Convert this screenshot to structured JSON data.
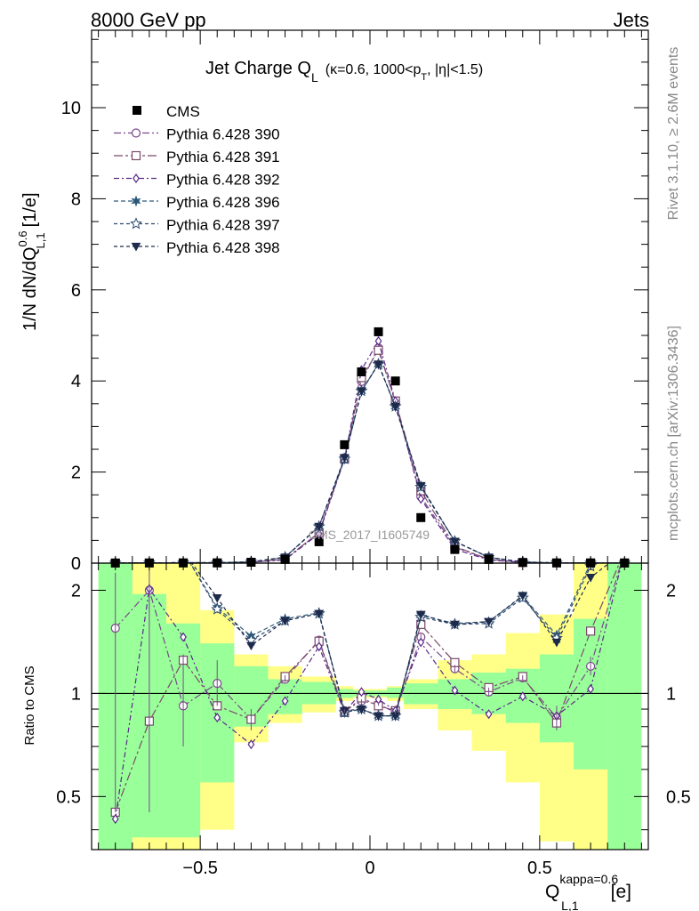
{
  "header": {
    "left": "8000 GeV pp",
    "right": "Jets"
  },
  "side_labels": {
    "rivet": "Rivet 3.1.10, ≥ 2.6M events",
    "mcplots": "mcplots.cern.ch [arXiv:1306.3436]"
  },
  "watermark": "CMS_2017_I1605749",
  "colors": {
    "data": "#000000",
    "p390": "#7a4a8a",
    "p391": "#7a4a6a",
    "p392": "#5a2a8a",
    "p396": "#2e5a7a",
    "p397": "#2e4a70",
    "p398": "#1e2a4a",
    "band_inner": "#99ff99",
    "band_outer": "#ffff88"
  },
  "chart_data": {
    "type": "line",
    "title_main": "Jet Charge Q",
    "title_sub": "L",
    "title_rest_a": "(κ=0.6, 1000<p",
    "title_rest_sub": "T",
    "title_rest_b": ", |η|<1.5)",
    "ylabel": "1/N dN/dQ",
    "ylabel_sup": "0.6",
    "ylabel_sub": "L,1",
    "ylabel_unit": "[1/e]",
    "ratio_ylabel": "Ratio to CMS",
    "xlabel_main": "Q",
    "xlabel_sup": "kappa=0.6",
    "xlabel_sub": "L,1",
    "xlabel_unit": "[e]",
    "xlim": [
      -0.82,
      0.82
    ],
    "ylim_main": [
      0,
      11.7
    ],
    "ylim_ratio": [
      0.35,
      2.4
    ],
    "x_ticks": [
      -0.5,
      0,
      0.5
    ],
    "x_tick_labels": [
      "−0.5",
      "0",
      "0.5"
    ],
    "y_ticks_main": [
      0,
      2,
      4,
      6,
      8,
      10
    ],
    "y_tick_labels_main": [
      "0",
      "2",
      "4",
      "6",
      "8",
      "10"
    ],
    "y_ticks_ratio": [
      0.5,
      1,
      2
    ],
    "y_tick_labels_ratio": [
      "0.5",
      "1",
      "2"
    ],
    "x": [
      -0.75,
      -0.65,
      -0.55,
      -0.45,
      -0.35,
      -0.25,
      -0.15,
      -0.075,
      -0.025,
      0.025,
      0.075,
      0.15,
      0.25,
      0.35,
      0.45,
      0.55,
      0.65,
      0.75
    ],
    "bin_edges": [
      -0.8,
      -0.7,
      -0.6,
      -0.5,
      -0.4,
      -0.3,
      -0.2,
      -0.1,
      -0.05,
      0,
      0.05,
      0.1,
      0.2,
      0.3,
      0.4,
      0.5,
      0.6,
      0.7,
      0.8
    ],
    "data_name": "CMS",
    "data_values": [
      0.002,
      0.003,
      0.004,
      0.005,
      0.02,
      0.08,
      0.47,
      2.6,
      4.2,
      5.08,
      4.0,
      1.0,
      0.3,
      0.08,
      0.013,
      0.004,
      0.003,
      0.002
    ],
    "series": [
      {
        "name": "Pythia 6.428 390",
        "color_key": "p390",
        "marker": "circle",
        "dash": "8 3 2 3",
        "ratio": [
          1.55,
          2.0,
          0.92,
          1.07,
          0.84,
          1.1,
          1.43,
          0.89,
          0.95,
          0.93,
          0.88,
          1.46,
          1.18,
          1.01,
          1.11,
          0.85,
          1.2,
          2.6
        ]
      },
      {
        "name": "Pythia 6.428 391",
        "color_key": "p391",
        "marker": "square",
        "dash": "10 3 3 3",
        "ratio": [
          0.45,
          0.83,
          1.25,
          0.92,
          0.84,
          1.12,
          1.42,
          0.88,
          0.97,
          0.92,
          0.89,
          1.59,
          1.23,
          1.04,
          1.12,
          0.82,
          1.52,
          2.6
        ]
      },
      {
        "name": "Pythia 6.428 392",
        "color_key": "p392",
        "marker": "diamond",
        "dash": "6 3 2 3",
        "ratio": [
          0.43,
          2.02,
          1.46,
          0.85,
          0.71,
          0.95,
          1.37,
          0.88,
          1.01,
          0.96,
          0.89,
          1.41,
          1.02,
          0.87,
          0.98,
          0.86,
          1.03,
          2.6
        ]
      },
      {
        "name": "Pythia 6.428 396",
        "color_key": "p396",
        "marker": "star6",
        "dash": "5 3",
        "ratio": [
          2.6,
          2.6,
          2.6,
          1.78,
          1.47,
          1.65,
          1.72,
          0.88,
          0.9,
          0.86,
          0.86,
          1.69,
          1.6,
          1.62,
          1.92,
          1.48,
          2.4,
          2.6
        ]
      },
      {
        "name": "Pythia 6.428 397",
        "color_key": "p397",
        "marker": "star5",
        "dash": "4 3",
        "ratio": [
          2.6,
          2.6,
          2.6,
          1.76,
          1.43,
          1.63,
          1.71,
          0.88,
          0.9,
          0.86,
          0.86,
          1.67,
          1.59,
          1.6,
          1.9,
          1.45,
          2.35,
          2.6
        ]
      },
      {
        "name": "Pythia 6.428 398",
        "color_key": "p398",
        "marker": "tri",
        "dash": "4 3",
        "ratio": [
          2.6,
          2.6,
          2.6,
          1.9,
          1.38,
          1.63,
          1.71,
          0.89,
          0.9,
          0.86,
          0.86,
          1.7,
          1.59,
          1.62,
          1.93,
          1.41,
          2.18,
          2.6
        ]
      }
    ],
    "error_bars_ratio": {
      "series_index": 0,
      "low": [
        0.45,
        0.45,
        0.7,
        0.92,
        0.78,
        1.08,
        1.4,
        0.88,
        0.94,
        0.92,
        0.87,
        1.43,
        1.15,
        0.98,
        1.09,
        0.78,
        1.13,
        2.4
      ],
      "high": [
        2.25,
        2.3,
        1.3,
        1.25,
        0.9,
        1.13,
        1.46,
        0.9,
        0.96,
        0.94,
        0.89,
        1.49,
        1.21,
        1.04,
        1.13,
        0.92,
        1.28,
        2.4
      ]
    },
    "band_inner": [
      [
        0.35,
        2.4
      ],
      [
        0.38,
        1.95
      ],
      [
        0.38,
        1.6
      ],
      [
        0.55,
        1.4
      ],
      [
        0.8,
        1.2
      ],
      [
        0.87,
        1.1
      ],
      [
        0.93,
        1.08
      ],
      [
        0.97,
        1.03
      ],
      [
        0.98,
        1.02
      ],
      [
        0.98,
        1.02
      ],
      [
        0.97,
        1.04
      ],
      [
        0.93,
        1.07
      ],
      [
        0.9,
        1.1
      ],
      [
        0.87,
        1.15
      ],
      [
        0.82,
        1.18
      ],
      [
        0.72,
        1.3
      ],
      [
        0.6,
        1.65
      ],
      [
        0.35,
        2.4
      ]
    ],
    "band_outer": [
      [
        0.35,
        2.4
      ],
      [
        0.35,
        2.4
      ],
      [
        0.35,
        2.4
      ],
      [
        0.4,
        1.75
      ],
      [
        0.72,
        1.3
      ],
      [
        0.82,
        1.2
      ],
      [
        0.88,
        1.12
      ],
      [
        0.95,
        1.05
      ],
      [
        0.97,
        1.03
      ],
      [
        0.97,
        1.03
      ],
      [
        0.95,
        1.05
      ],
      [
        0.9,
        1.1
      ],
      [
        0.78,
        1.25
      ],
      [
        0.68,
        1.3
      ],
      [
        0.55,
        1.5
      ],
      [
        0.37,
        1.7
      ],
      [
        0.35,
        2.4
      ],
      [
        0.35,
        2.4
      ]
    ]
  }
}
